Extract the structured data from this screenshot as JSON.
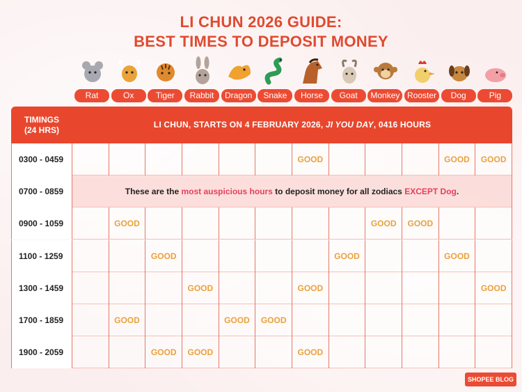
{
  "title": {
    "line1": "LI CHUN 2026 GUIDE:",
    "line2": "BEST TIMES TO DEPOSIT MONEY"
  },
  "zodiacs": [
    {
      "label": "Rat",
      "icon": "rat-icon",
      "color": "#a8a8b0"
    },
    {
      "label": "Ox",
      "icon": "ox-icon",
      "color": "#e9a33a"
    },
    {
      "label": "Tiger",
      "icon": "tiger-icon",
      "color": "#e08a2e"
    },
    {
      "label": "Rabbit",
      "icon": "rabbit-icon",
      "color": "#b3a39a"
    },
    {
      "label": "Dragon",
      "icon": "dragon-icon",
      "color": "#f0a12f"
    },
    {
      "label": "Snake",
      "icon": "snake-icon",
      "color": "#2e9b57"
    },
    {
      "label": "Horse",
      "icon": "horse-icon",
      "color": "#b8612a"
    },
    {
      "label": "Goat",
      "icon": "goat-icon",
      "color": "#d7c9b5"
    },
    {
      "label": "Monkey",
      "icon": "monkey-icon",
      "color": "#b97a3a"
    },
    {
      "label": "Rooster",
      "icon": "rooster-icon",
      "color": "#f1cf6a"
    },
    {
      "label": "Dog",
      "icon": "dog-icon",
      "color": "#c9883e"
    },
    {
      "label": "Pig",
      "icon": "pig-icon",
      "color": "#f2a0a6"
    }
  ],
  "header": {
    "timings": "TIMINGS",
    "hours": "(24 HRS)",
    "info_pre": "LI CHUN, STARTS ON 4 FEBRUARY 2026, ",
    "info_em": "JI YOU DAY",
    "info_post": ", 0416 HOURS"
  },
  "rows": [
    {
      "time": "0300 - 0459",
      "good": [
        6,
        10,
        11
      ]
    },
    {
      "time": "0700 - 0859",
      "merged": true,
      "note_pre": "These are the ",
      "note_hl1": "most auspicious hours",
      "note_mid": " to deposit money for all zodiacs ",
      "note_hl2": "EXCEPT Dog",
      "note_post": "."
    },
    {
      "time": "0900 - 1059",
      "good": [
        1,
        8,
        9
      ]
    },
    {
      "time": "1100 - 1259",
      "good": [
        2,
        7,
        10
      ]
    },
    {
      "time": "1300 - 1459",
      "good": [
        3,
        6,
        11
      ]
    },
    {
      "time": "1700 - 1859",
      "good": [
        1,
        4,
        5
      ]
    },
    {
      "time": "1900 - 2059",
      "good": [
        2,
        3,
        6
      ]
    }
  ],
  "good_label": "GOOD",
  "logo": "SHOPEE BLOG",
  "colors": {
    "accent": "#e8472d",
    "good": "#e9a13b",
    "highlight": "#e4405d"
  }
}
